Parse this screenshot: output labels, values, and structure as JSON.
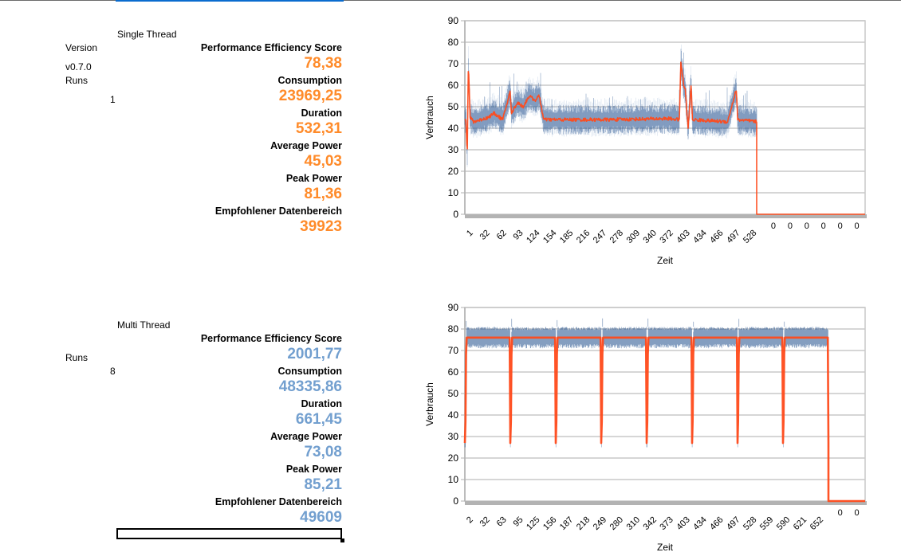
{
  "sections": [
    {
      "title": "Single Thread",
      "version_label": "Version",
      "version_value": "v0.7.0",
      "runs_label": "Runs",
      "runs_value": "1",
      "color": "#ff8b2a",
      "metrics": [
        {
          "label": "Performance Efficiency Score",
          "value": "78,38"
        },
        {
          "label": "Consumption",
          "value": "23969,25"
        },
        {
          "label": "Duration",
          "value": "532,31"
        },
        {
          "label": "Average Power",
          "value": "45,03"
        },
        {
          "label": "Peak Power",
          "value": "81,36"
        },
        {
          "label": "Empfohlener Datenbereich",
          "value": "39923"
        }
      ]
    },
    {
      "title": "Multi Thread",
      "runs_label": "Runs",
      "runs_value": "8",
      "color": "#729fcf",
      "metrics": [
        {
          "label": "Performance Efficiency Score",
          "value": "2001,77"
        },
        {
          "label": "Consumption",
          "value": "48335,86"
        },
        {
          "label": "Duration",
          "value": "661,45"
        },
        {
          "label": "Average Power",
          "value": "73,08"
        },
        {
          "label": "Peak Power",
          "value": "85,21"
        },
        {
          "label": "Empfohlener Datenbereich",
          "value": "49609"
        }
      ]
    }
  ],
  "chart_data": [
    {
      "type": "line",
      "title": "",
      "xlabel": "Zeit",
      "ylabel": "Verbrauch",
      "ylim": [
        0,
        90
      ],
      "yticks": [
        0,
        10,
        20,
        30,
        40,
        50,
        60,
        70,
        80,
        90
      ],
      "x_tick_labels": [
        "1",
        "32",
        "62",
        "93",
        "124",
        "154",
        "185",
        "216",
        "247",
        "278",
        "309",
        "340",
        "372",
        "403",
        "434",
        "466",
        "497",
        "528",
        "0",
        "0",
        "0",
        "0",
        "0",
        "0"
      ],
      "grid": true,
      "legend": "none",
      "series": [
        {
          "name": "raw",
          "color": "#1f4e8c",
          "description": "noisy raw power samples, ~40-50 baseline with spikes"
        },
        {
          "name": "smoothed",
          "color": "#ff4a1a",
          "description": "moving average"
        }
      ],
      "profile": {
        "active_until_label_index": 17.5,
        "segments": [
          {
            "x_frac": 0.0,
            "y": 45
          },
          {
            "x_frac": 0.004,
            "y": 44
          },
          {
            "x_frac": 0.008,
            "y": 27
          },
          {
            "x_frac": 0.012,
            "y": 70
          },
          {
            "x_frac": 0.018,
            "y": 45
          },
          {
            "x_frac": 0.03,
            "y": 43
          },
          {
            "x_frac": 0.08,
            "y": 45
          },
          {
            "x_frac": 0.1,
            "y": 47
          },
          {
            "x_frac": 0.13,
            "y": 44
          },
          {
            "x_frac": 0.155,
            "y": 57
          },
          {
            "x_frac": 0.16,
            "y": 47
          },
          {
            "x_frac": 0.18,
            "y": 52
          },
          {
            "x_frac": 0.2,
            "y": 50
          },
          {
            "x_frac": 0.22,
            "y": 55
          },
          {
            "x_frac": 0.24,
            "y": 53
          },
          {
            "x_frac": 0.255,
            "y": 55
          },
          {
            "x_frac": 0.27,
            "y": 44
          },
          {
            "x_frac": 0.5,
            "y": 44
          },
          {
            "x_frac": 0.7,
            "y": 44.5
          },
          {
            "x_frac": 0.735,
            "y": 44
          },
          {
            "x_frac": 0.74,
            "y": 71
          },
          {
            "x_frac": 0.75,
            "y": 60
          },
          {
            "x_frac": 0.755,
            "y": 58
          },
          {
            "x_frac": 0.765,
            "y": 40
          },
          {
            "x_frac": 0.775,
            "y": 60
          },
          {
            "x_frac": 0.78,
            "y": 44
          },
          {
            "x_frac": 0.9,
            "y": 43
          },
          {
            "x_frac": 0.93,
            "y": 58
          },
          {
            "x_frac": 0.935,
            "y": 44
          },
          {
            "x_frac": 1.0,
            "y": 43
          }
        ],
        "after": 0
      }
    },
    {
      "type": "line",
      "title": "",
      "xlabel": "Zeit",
      "ylabel": "Verbrauch",
      "ylim": [
        0,
        90
      ],
      "yticks": [
        0,
        10,
        20,
        30,
        40,
        50,
        60,
        70,
        80,
        90
      ],
      "x_tick_labels": [
        "2",
        "32",
        "63",
        "95",
        "125",
        "156",
        "187",
        "218",
        "249",
        "280",
        "310",
        "342",
        "373",
        "403",
        "434",
        "466",
        "497",
        "528",
        "559",
        "590",
        "621",
        "652",
        "0",
        "0"
      ],
      "grid": true,
      "legend": "none",
      "series": [
        {
          "name": "raw",
          "color": "#1f4e8c",
          "description": "raw power samples oscillating 71-81 during 8 runs, dips to ~27 between runs"
        },
        {
          "name": "smoothed",
          "color": "#ff4a1a",
          "description": "moving average plateau ~76"
        }
      ],
      "profile": {
        "runs": 8,
        "plateau": 76,
        "raw_low": 71,
        "raw_high": 81,
        "dip": 27,
        "peak": 85,
        "active_until_label_index": 21.8,
        "after": 0
      }
    }
  ]
}
